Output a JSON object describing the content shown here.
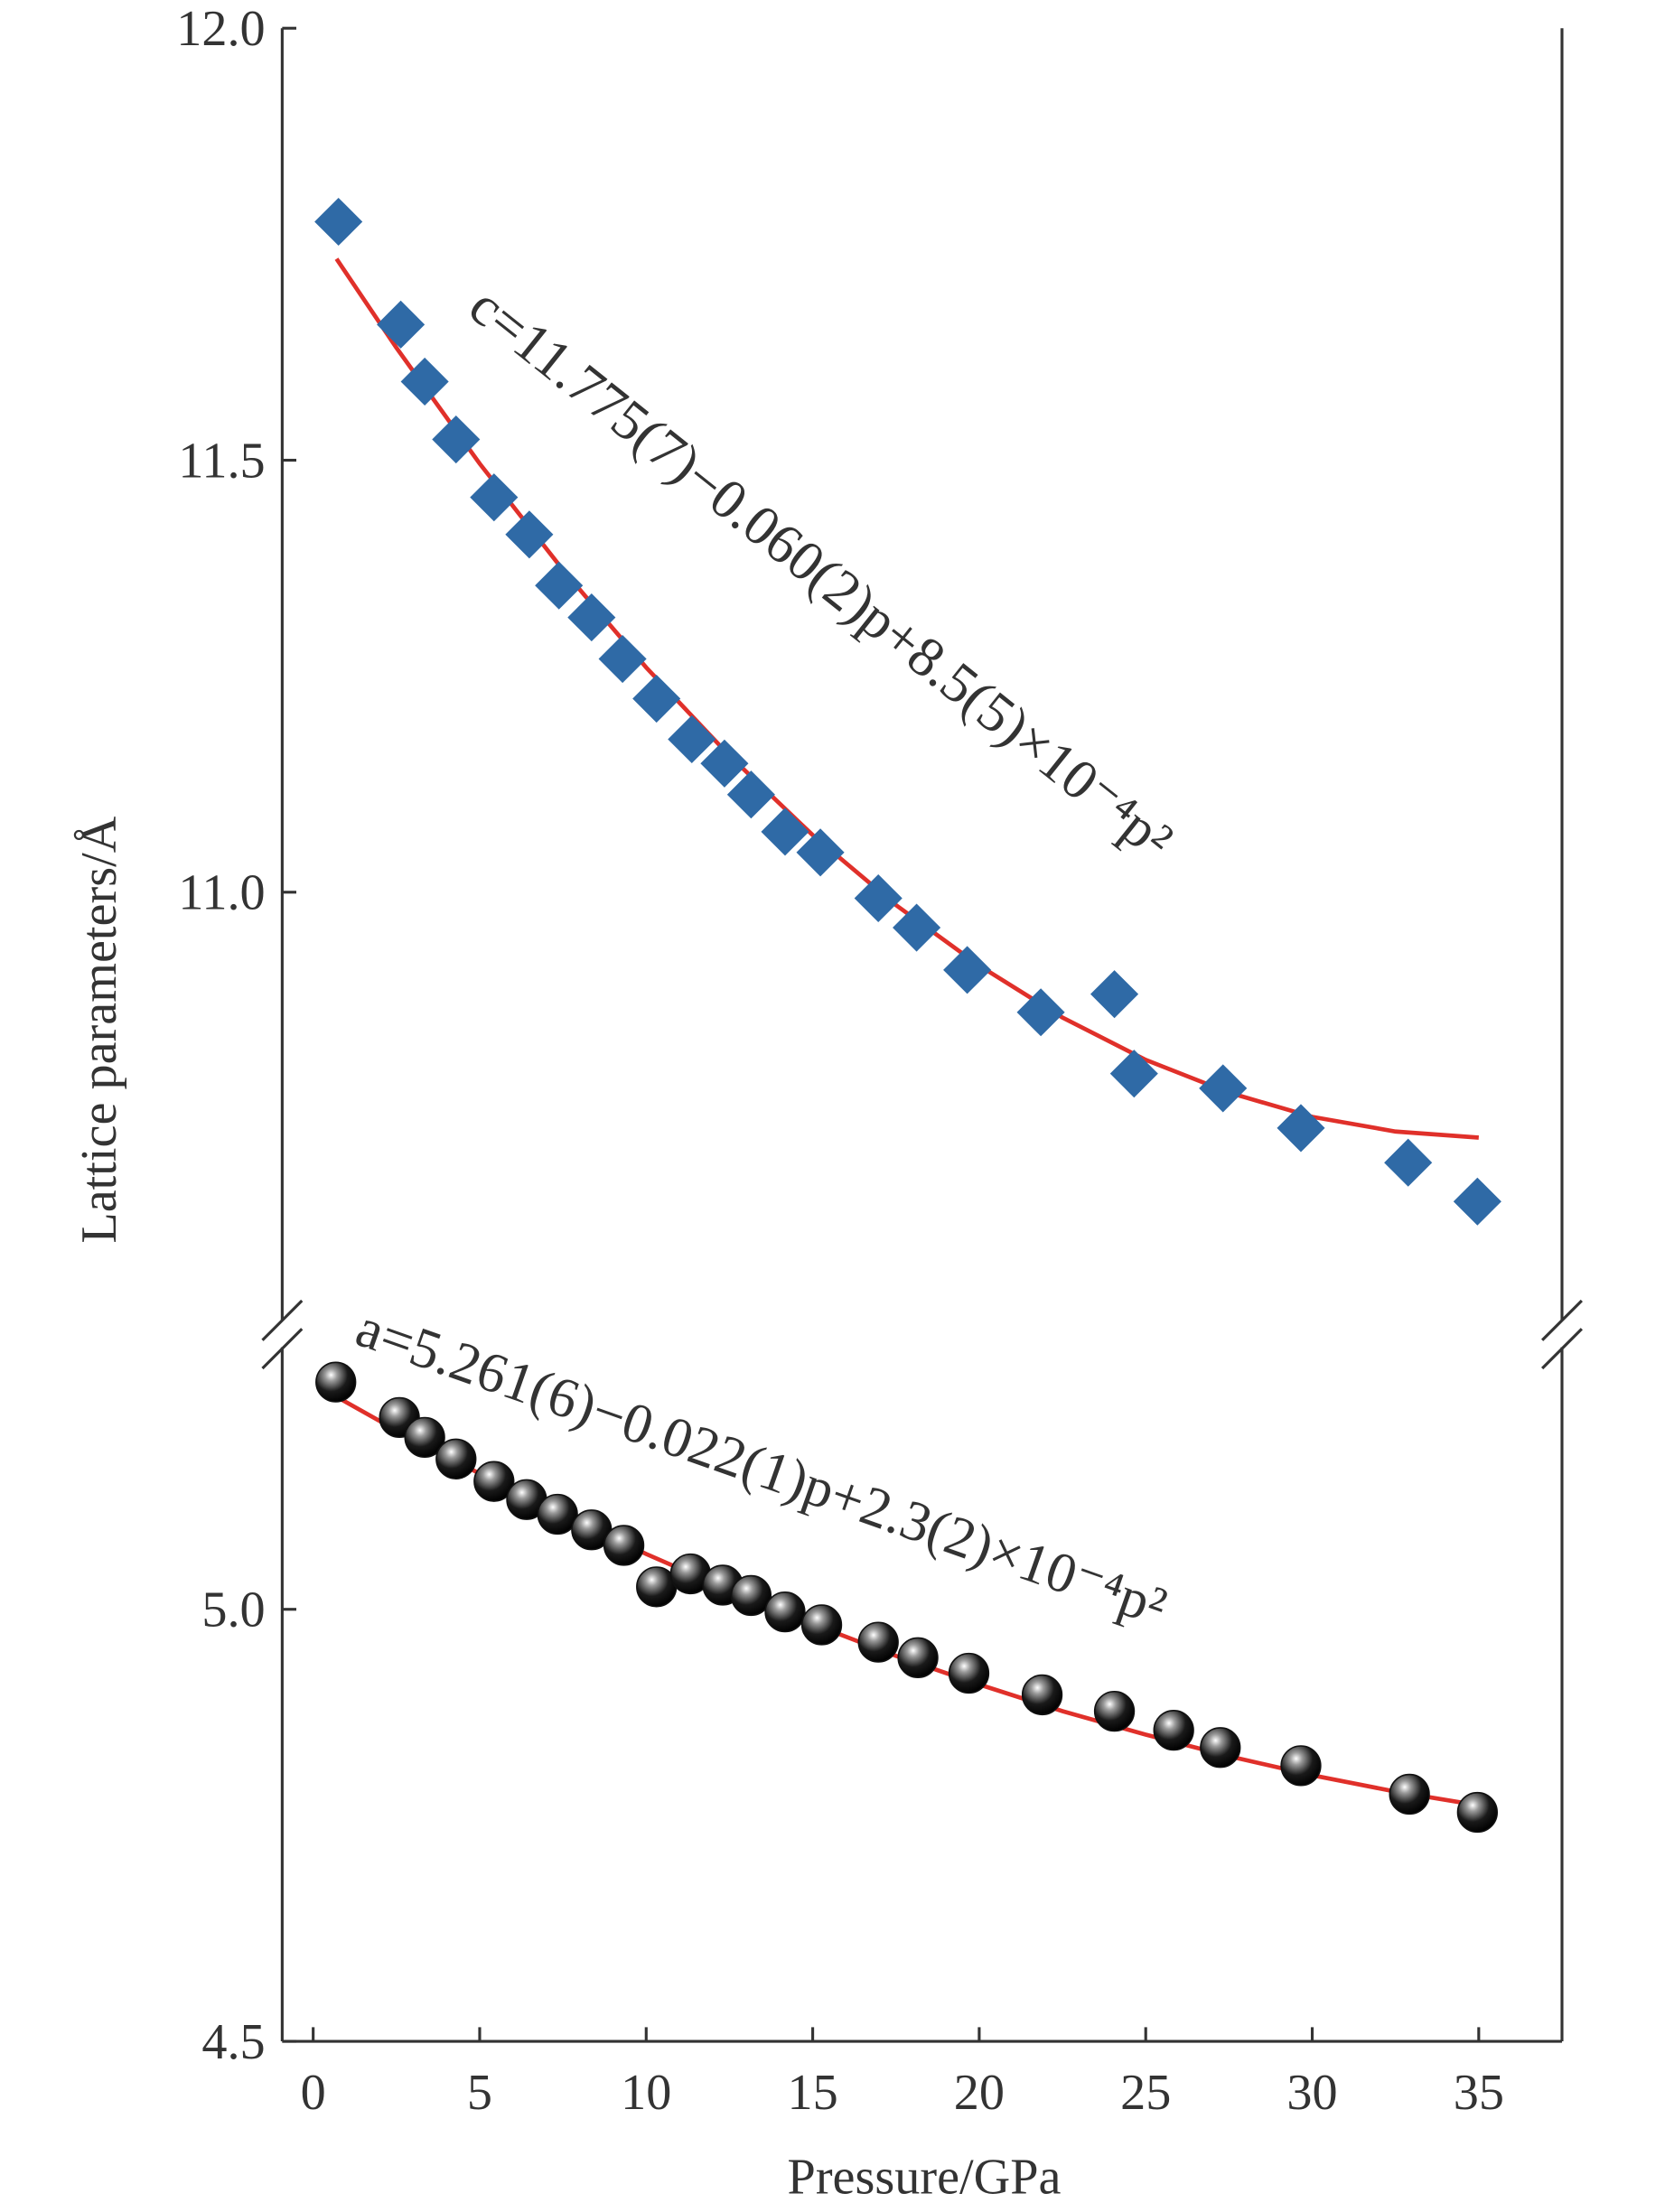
{
  "chart_data": {
    "type": "scatter",
    "x_label": "Pressure/GPa",
    "y_label": "Lattice parameters/Å",
    "xlim": [
      -0.93,
      37.5
    ],
    "xticks": [
      0,
      5,
      10,
      15,
      20,
      25,
      30,
      35
    ],
    "ylim": [
      4.5,
      12.0
    ],
    "y_break": [
      5.32,
      10.49
    ],
    "yticks": [
      4.5,
      {
        "value": 5,
        "label": "5.0"
      },
      {
        "value": 11,
        "label": "11.0"
      },
      11.5,
      {
        "value": 12,
        "label": "12.0"
      }
    ],
    "annotations": [
      {
        "text": "c=11.775(7)−0.060(2)p+8.5(5)×10⁻⁴p²"
      },
      {
        "text": "a=5.261(6)−0.022(1)p+2.3(2)×10⁻⁴p²"
      }
    ],
    "series": [
      {
        "type": "scatter",
        "marker": "diamond",
        "color": "#2f6aa6",
        "x": [
          0.76,
          2.63,
          3.35,
          4.29,
          5.43,
          6.49,
          7.38,
          8.36,
          9.29,
          10.31,
          11.37,
          12.35,
          13.15,
          14.17,
          15.23,
          16.97,
          18.12,
          19.64,
          21.85,
          24.06,
          24.65,
          27.32,
          29.66,
          32.88,
          34.96
        ],
        "values": [
          11.776,
          11.657,
          11.591,
          11.524,
          11.457,
          11.414,
          11.355,
          11.318,
          11.27,
          11.224,
          11.177,
          11.149,
          11.113,
          11.07,
          11.046,
          10.993,
          10.959,
          10.91,
          10.861,
          10.882,
          10.79,
          10.773,
          10.727,
          10.687,
          10.642
        ]
      },
      {
        "type": "scatter",
        "marker": "sphere",
        "color": "#111111",
        "x": [
          0.68,
          2.59,
          3.35,
          4.29,
          5.43,
          6.41,
          7.34,
          8.36,
          9.33,
          10.31,
          11.33,
          12.3,
          13.15,
          14.17,
          15.27,
          16.97,
          18.16,
          19.69,
          21.89,
          24.06,
          25.84,
          27.24,
          29.66,
          32.92,
          34.96
        ],
        "values": [
          5.263,
          5.222,
          5.199,
          5.174,
          5.148,
          5.127,
          5.11,
          5.092,
          5.074,
          5.026,
          5.041,
          5.028,
          5.016,
          4.997,
          4.982,
          4.962,
          4.944,
          4.926,
          4.901,
          4.882,
          4.86,
          4.84,
          4.819,
          4.786,
          4.765
        ]
      },
      {
        "type": "line",
        "color": "#e0302a",
        "x": [
          0.7,
          2.5,
          5,
          7.5,
          10,
          12.5,
          15,
          17.5,
          20,
          22.5,
          25,
          27.5,
          30,
          32.5,
          35
        ],
        "values": [
          11.733,
          11.63,
          11.496,
          11.373,
          11.26,
          11.158,
          11.066,
          10.985,
          10.915,
          10.855,
          10.806,
          10.768,
          10.74,
          10.723,
          10.716
        ]
      },
      {
        "type": "line",
        "color": "#e0302a",
        "x": [
          0.7,
          2.5,
          5,
          7.5,
          10,
          12.5,
          15,
          17.5,
          20,
          22.5,
          25,
          27.5,
          30,
          32.5,
          35
        ],
        "values": [
          5.246,
          5.207,
          5.157,
          5.109,
          5.064,
          5.022,
          4.983,
          4.946,
          4.913,
          4.882,
          4.855,
          4.83,
          4.808,
          4.789,
          4.773
        ]
      }
    ]
  }
}
